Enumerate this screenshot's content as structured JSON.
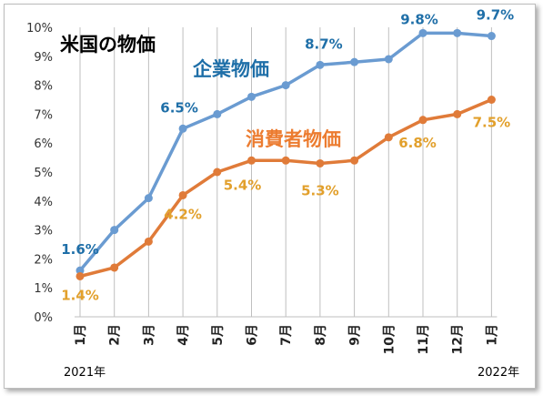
{
  "colors": {
    "corporate": "#6a9bd1",
    "corporate_label": "#1f6fa8",
    "consumer": "#e07b39",
    "consumer_label": "#e2a02c",
    "consumer_title": "#ec7c30",
    "grid": "#bfbfbf",
    "axis_text": "#333333"
  },
  "chart_data": {
    "type": "line",
    "title": "米国の物価",
    "categories": [
      "1月",
      "2月",
      "3月",
      "4月",
      "5月",
      "6月",
      "7月",
      "8月",
      "9月",
      "10月",
      "11月",
      "12月",
      "1月"
    ],
    "year_labels": {
      "start": "2021年",
      "end": "2022年"
    },
    "ylim": [
      0,
      10
    ],
    "y_ticks": [
      "0%",
      "1%",
      "2%",
      "3%",
      "4%",
      "5%",
      "6%",
      "7%",
      "8%",
      "9%",
      "10%"
    ],
    "grid": {
      "vertical": true,
      "horizontal": false
    },
    "series": [
      {
        "name": "企業物価",
        "values": [
          1.6,
          3.0,
          4.1,
          6.5,
          7.0,
          7.6,
          8.0,
          8.7,
          8.8,
          8.9,
          9.8,
          9.8,
          9.7
        ],
        "data_labels": [
          {
            "index": 0,
            "text": "1.6%"
          },
          {
            "index": 3,
            "text": "6.5%"
          },
          {
            "index": 7,
            "text": "8.7%"
          },
          {
            "index": 10,
            "text": "9.8%"
          },
          {
            "index": 12,
            "text": "9.7%"
          }
        ]
      },
      {
        "name": "消費者物価",
        "values": [
          1.4,
          1.7,
          2.6,
          4.2,
          5.0,
          5.4,
          5.4,
          5.3,
          5.4,
          6.2,
          6.8,
          7.0,
          7.5
        ],
        "data_labels": [
          {
            "index": 0,
            "text": "1.4%"
          },
          {
            "index": 3,
            "text": "4.2%"
          },
          {
            "index": 5,
            "text": "5.4%"
          },
          {
            "index": 7,
            "text": "5.3%"
          },
          {
            "index": 10,
            "text": "6.8%"
          },
          {
            "index": 12,
            "text": "7.5%"
          }
        ]
      }
    ]
  }
}
